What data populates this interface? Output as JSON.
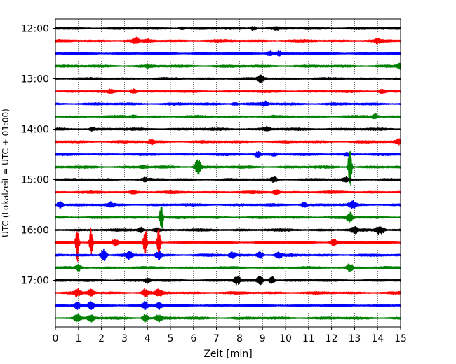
{
  "chart_data": {
    "type": "line",
    "title": "",
    "xlabel": "Zeit  [min]",
    "ylabel": "UTC (Lokalzeit = UTC + 01:00)",
    "xlim": [
      0,
      15
    ],
    "x_ticks": [
      0,
      1,
      2,
      3,
      4,
      5,
      6,
      7,
      8,
      9,
      10,
      11,
      12,
      13,
      14,
      15
    ],
    "grid": "vertical dotted at each minute",
    "y_tick_labels": [
      "12:00",
      "13:00",
      "14:00",
      "15:00",
      "16:00",
      "17:00"
    ],
    "trace_interval_minutes": 15,
    "trace_colors": [
      "#000000",
      "#ff0000",
      "#0000ff",
      "#008000"
    ],
    "traces": [
      {
        "start": "12:00",
        "events": [
          {
            "t": 8.6,
            "a": 0.45
          },
          {
            "t": 9.6,
            "a": 0.35
          },
          {
            "t": 5.5,
            "a": 0.25
          }
        ]
      },
      {
        "start": "12:15",
        "events": [
          {
            "t": 3.5,
            "a": 0.65
          },
          {
            "t": 14.0,
            "a": 0.5
          },
          {
            "t": 4.0,
            "a": 0.25
          }
        ]
      },
      {
        "start": "12:30",
        "events": [
          {
            "t": 9.3,
            "a": 0.55
          },
          {
            "t": 9.7,
            "a": 0.45
          }
        ]
      },
      {
        "start": "12:45",
        "events": [
          {
            "t": 15.0,
            "a": 0.7
          },
          {
            "t": 4.0,
            "a": 0.2
          }
        ]
      },
      {
        "start": "13:00",
        "events": [
          {
            "t": 8.9,
            "a": 0.5
          },
          {
            "t": 9.0,
            "a": 0.4
          }
        ]
      },
      {
        "start": "13:15",
        "events": [
          {
            "t": 3.4,
            "a": 0.55
          },
          {
            "t": 14.2,
            "a": 0.5
          },
          {
            "t": 2.4,
            "a": 0.3
          }
        ]
      },
      {
        "start": "13:30",
        "events": [
          {
            "t": 9.1,
            "a": 0.55
          },
          {
            "t": 7.8,
            "a": 0.3
          }
        ]
      },
      {
        "start": "13:45",
        "events": [
          {
            "t": 13.9,
            "a": 0.6
          },
          {
            "t": 3.4,
            "a": 0.3
          }
        ]
      },
      {
        "start": "14:00",
        "events": [
          {
            "t": 9.2,
            "a": 0.45
          },
          {
            "t": 1.6,
            "a": 0.35
          }
        ]
      },
      {
        "start": "14:15",
        "events": [
          {
            "t": 4.2,
            "a": 0.45
          },
          {
            "t": 14.9,
            "a": 0.55
          }
        ]
      },
      {
        "start": "14:30",
        "events": [
          {
            "t": 8.8,
            "a": 0.6
          },
          {
            "t": 9.5,
            "a": 0.35
          },
          {
            "t": 12.7,
            "a": 0.35
          }
        ]
      },
      {
        "start": "14:45",
        "events": [
          {
            "t": 6.2,
            "a": 1.9
          },
          {
            "t": 12.8,
            "a": 5.9
          },
          {
            "t": 3.8,
            "a": 0.35
          }
        ]
      },
      {
        "start": "15:00",
        "events": [
          {
            "t": 9.5,
            "a": 0.6
          },
          {
            "t": 12.6,
            "a": 0.5
          },
          {
            "t": 3.9,
            "a": 0.35
          }
        ]
      },
      {
        "start": "15:15",
        "events": [
          {
            "t": 9.6,
            "a": 0.65
          },
          {
            "t": 3.4,
            "a": 0.35
          }
        ]
      },
      {
        "start": "15:30",
        "events": [
          {
            "t": 0.2,
            "a": 0.75
          },
          {
            "t": 10.8,
            "a": 0.55
          },
          {
            "t": 12.9,
            "a": 0.95
          },
          {
            "t": 2.4,
            "a": 0.45
          }
        ]
      },
      {
        "start": "15:45",
        "events": [
          {
            "t": 12.8,
            "a": 1.1
          },
          {
            "t": 4.6,
            "a": 3.6
          }
        ]
      },
      {
        "start": "16:00",
        "events": [
          {
            "t": 3.7,
            "a": 0.6
          },
          {
            "t": 4.4,
            "a": 0.45
          },
          {
            "t": 13.0,
            "a": 0.75
          },
          {
            "t": 14.0,
            "a": 0.75
          },
          {
            "t": 14.2,
            "a": 0.65
          }
        ]
      },
      {
        "start": "16:15",
        "events": [
          {
            "t": 2.6,
            "a": 0.75
          },
          {
            "t": 12.1,
            "a": 0.95
          },
          {
            "t": 0.95,
            "a": 4.5
          },
          {
            "t": 1.55,
            "a": 3.6
          },
          {
            "t": 3.9,
            "a": 4.0
          },
          {
            "t": 4.5,
            "a": 4.2
          }
        ]
      },
      {
        "start": "16:30",
        "events": [
          {
            "t": 2.1,
            "a": 1.25
          },
          {
            "t": 3.2,
            "a": 0.75
          },
          {
            "t": 4.5,
            "a": 0.95
          },
          {
            "t": 7.7,
            "a": 0.75
          },
          {
            "t": 8.9,
            "a": 0.85
          },
          {
            "t": 9.7,
            "a": 0.65
          }
        ]
      },
      {
        "start": "16:45",
        "events": [
          {
            "t": 12.8,
            "a": 1.0
          },
          {
            "t": 1.0,
            "a": 0.6
          }
        ]
      },
      {
        "start": "17:00",
        "events": [
          {
            "t": 7.9,
            "a": 0.95
          },
          {
            "t": 8.9,
            "a": 1.0
          },
          {
            "t": 9.4,
            "a": 0.9
          },
          {
            "t": 4.0,
            "a": 0.45
          }
        ]
      },
      {
        "start": "17:15",
        "events": [
          {
            "t": 0.95,
            "a": 0.8
          },
          {
            "t": 1.55,
            "a": 0.8
          },
          {
            "t": 3.9,
            "a": 0.8
          },
          {
            "t": 4.5,
            "a": 0.8
          }
        ]
      },
      {
        "start": "17:30",
        "events": [
          {
            "t": 0.95,
            "a": 0.8
          },
          {
            "t": 1.55,
            "a": 0.8
          },
          {
            "t": 3.9,
            "a": 0.8
          },
          {
            "t": 4.5,
            "a": 0.8
          }
        ]
      },
      {
        "start": "17:45",
        "events": [
          {
            "t": 0.95,
            "a": 0.8
          },
          {
            "t": 1.55,
            "a": 0.8
          },
          {
            "t": 3.9,
            "a": 0.8
          },
          {
            "t": 4.5,
            "a": 0.8
          }
        ]
      }
    ]
  }
}
